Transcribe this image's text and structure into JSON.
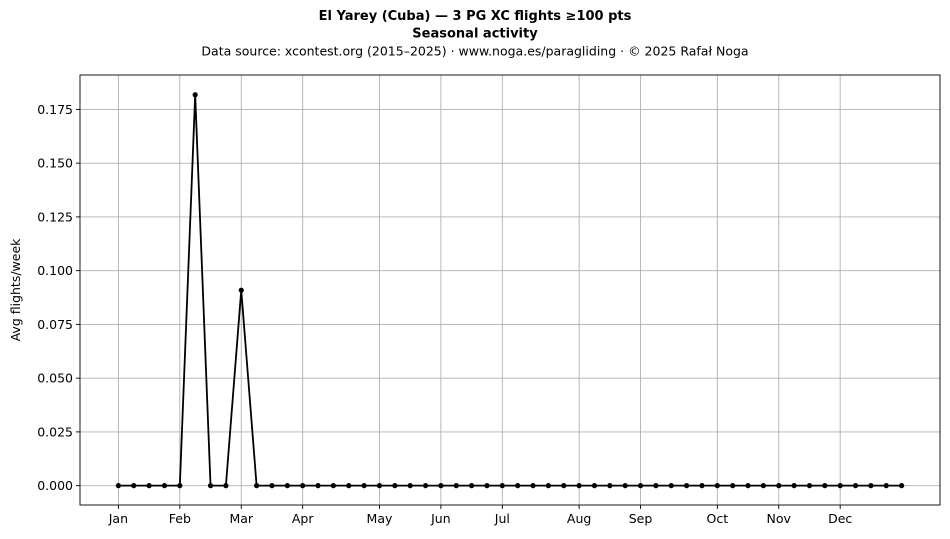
{
  "chart_data": {
    "type": "line",
    "title": "El Yarey (Cuba)  —  3 PG XC flights ≥100 pts",
    "subtitle": "Seasonal activity",
    "source_line": "Data source: xcontest.org (2015–2025)  ·  www.noga.es/paragliding  ·  © 2025 Rafał Noga",
    "xlabel": "",
    "ylabel": "Avg flights/week",
    "x_unit": "week",
    "x": [
      1,
      2,
      3,
      4,
      5,
      6,
      7,
      8,
      9,
      10,
      11,
      12,
      13,
      14,
      15,
      16,
      17,
      18,
      19,
      20,
      21,
      22,
      23,
      24,
      25,
      26,
      27,
      28,
      29,
      30,
      31,
      32,
      33,
      34,
      35,
      36,
      37,
      38,
      39,
      40,
      41,
      42,
      43,
      44,
      45,
      46,
      47,
      48,
      49,
      50,
      51,
      52
    ],
    "values": [
      0,
      0,
      0,
      0,
      0,
      0.1818,
      0,
      0,
      0.0909,
      0,
      0,
      0,
      0,
      0,
      0,
      0,
      0,
      0,
      0,
      0,
      0,
      0,
      0,
      0,
      0,
      0,
      0,
      0,
      0,
      0,
      0,
      0,
      0,
      0,
      0,
      0,
      0,
      0,
      0,
      0,
      0,
      0,
      0,
      0,
      0,
      0,
      0,
      0,
      0,
      0,
      0,
      0
    ],
    "xlim": [
      -1.5,
      54.5
    ],
    "ylim": [
      -0.009,
      0.191
    ],
    "x_ticks": [
      {
        "label": "Jan",
        "x": 1
      },
      {
        "label": "Feb",
        "x": 5
      },
      {
        "label": "Mar",
        "x": 9
      },
      {
        "label": "Apr",
        "x": 13
      },
      {
        "label": "May",
        "x": 18
      },
      {
        "label": "Jun",
        "x": 22
      },
      {
        "label": "Jul",
        "x": 26
      },
      {
        "label": "Aug",
        "x": 31
      },
      {
        "label": "Sep",
        "x": 35
      },
      {
        "label": "Oct",
        "x": 40
      },
      {
        "label": "Nov",
        "x": 44
      },
      {
        "label": "Dec",
        "x": 48
      }
    ],
    "y_ticks": [
      "0.000",
      "0.025",
      "0.050",
      "0.075",
      "0.100",
      "0.125",
      "0.150",
      "0.175"
    ],
    "grid": true,
    "line_color": "#000000",
    "grid_color": "#b0b0b0"
  }
}
